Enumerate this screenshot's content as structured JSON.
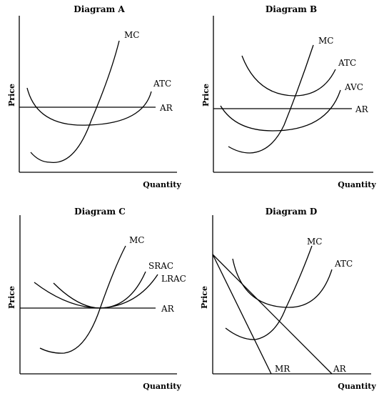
{
  "panels": [
    {
      "title": "Diagram A",
      "xlabel": "Quantity",
      "ylabel": "Price",
      "curves": [
        "MC",
        "ATC",
        "AR"
      ]
    },
    {
      "title": "Diagram B",
      "xlabel": "Quantity",
      "ylabel": "Price",
      "curves": [
        "MC",
        "ATC",
        "AVC",
        "AR"
      ]
    },
    {
      "title": "Diagram C",
      "xlabel": "Quantity",
      "ylabel": "Price",
      "curves": [
        "MC",
        "SRAC",
        "LRAC",
        "AR"
      ]
    },
    {
      "title": "Diagram D",
      "xlabel": "Quantity",
      "ylabel": "Price",
      "curves": [
        "MC",
        "ATC",
        "MR",
        "AR"
      ]
    }
  ]
}
